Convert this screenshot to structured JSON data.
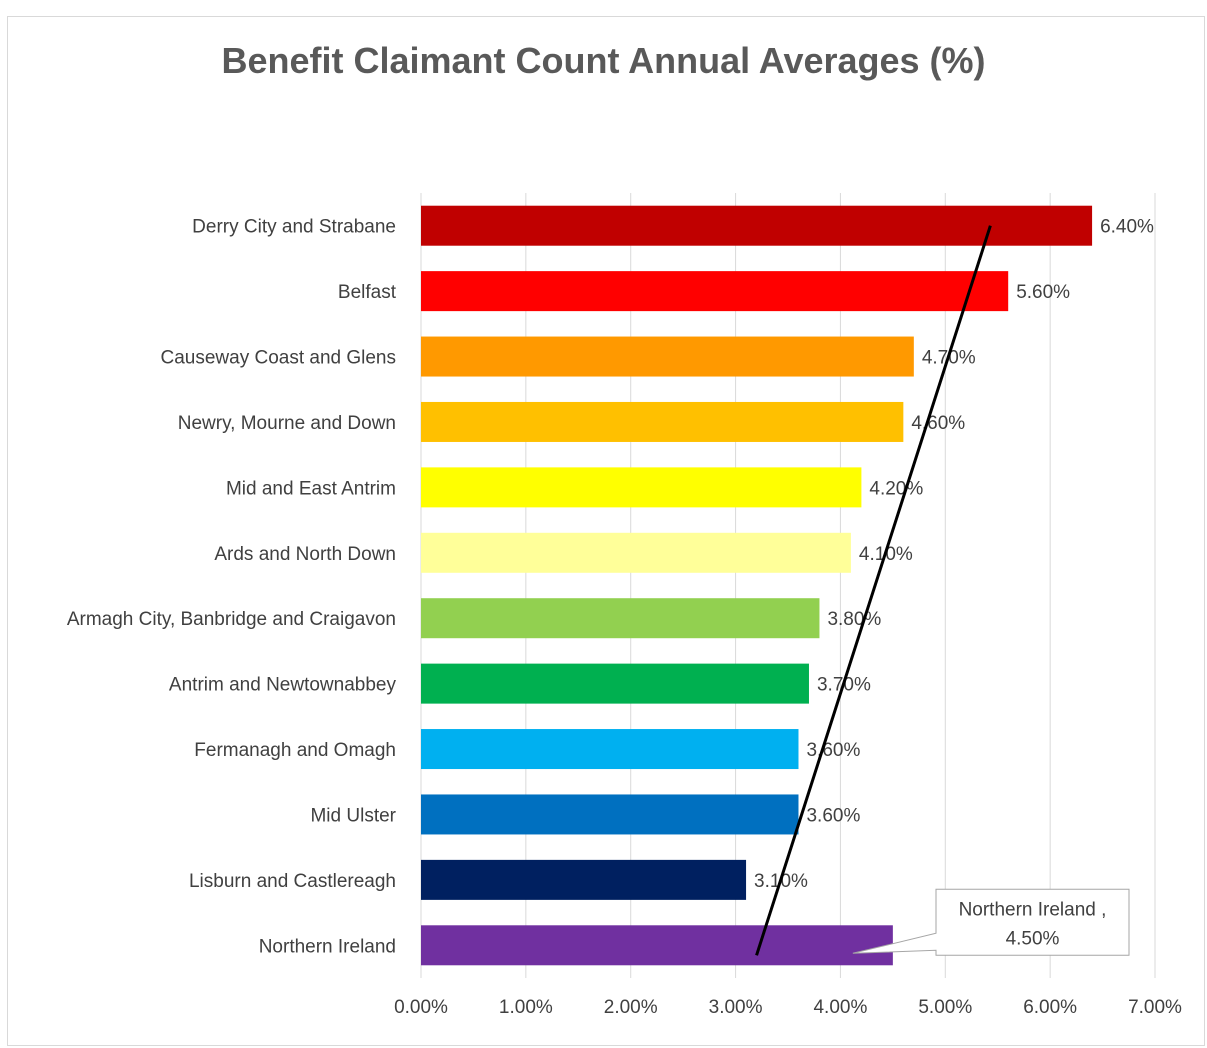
{
  "chart_data": {
    "type": "bar",
    "orientation": "horizontal",
    "title": "Benefit Claimant Count Annual Averages (%)",
    "xlabel": "",
    "ylabel": "",
    "xlim": [
      0,
      7
    ],
    "x_ticks": [
      "0.00%",
      "1.00%",
      "2.00%",
      "3.00%",
      "4.00%",
      "5.00%",
      "6.00%",
      "7.00%"
    ],
    "grid": true,
    "legend": "none",
    "categories": [
      "Derry City and Strabane",
      "Belfast",
      "Causeway Coast and Glens",
      "Newry, Mourne and Down",
      "Mid and East Antrim",
      "Ards and North Down",
      "Armagh City, Banbridge and Craigavon",
      "Antrim and Newtownabbey",
      "Fermanagh and Omagh",
      "Mid Ulster",
      "Lisburn and Castlereagh",
      "Northern Ireland"
    ],
    "values": [
      6.4,
      5.6,
      4.7,
      4.6,
      4.2,
      4.1,
      3.8,
      3.7,
      3.6,
      3.6,
      3.1,
      4.5
    ],
    "value_labels": [
      "6.40%",
      "5.60%",
      "4.70%",
      "4.60%",
      "4.20%",
      "4.10%",
      "3.80%",
      "3.70%",
      "3.60%",
      "3.60%",
      "3.10%",
      "4.50%"
    ],
    "colors": [
      "#c00000",
      "#ff0000",
      "#ff9900",
      "#ffc000",
      "#ffff00",
      "#ffff99",
      "#92d050",
      "#00b050",
      "#00b0f0",
      "#0070c0",
      "#002060",
      "#7030a0"
    ],
    "callout": {
      "category": "Northern Ireland",
      "line1": "Northern Ireland ,",
      "line2": "4.50%"
    },
    "trendline": {
      "color": "#000000",
      "from": {
        "category": "Northern Ireland",
        "x": 3.2
      },
      "to": {
        "category": "Derry City and Strabane",
        "x": 5.43
      }
    }
  }
}
